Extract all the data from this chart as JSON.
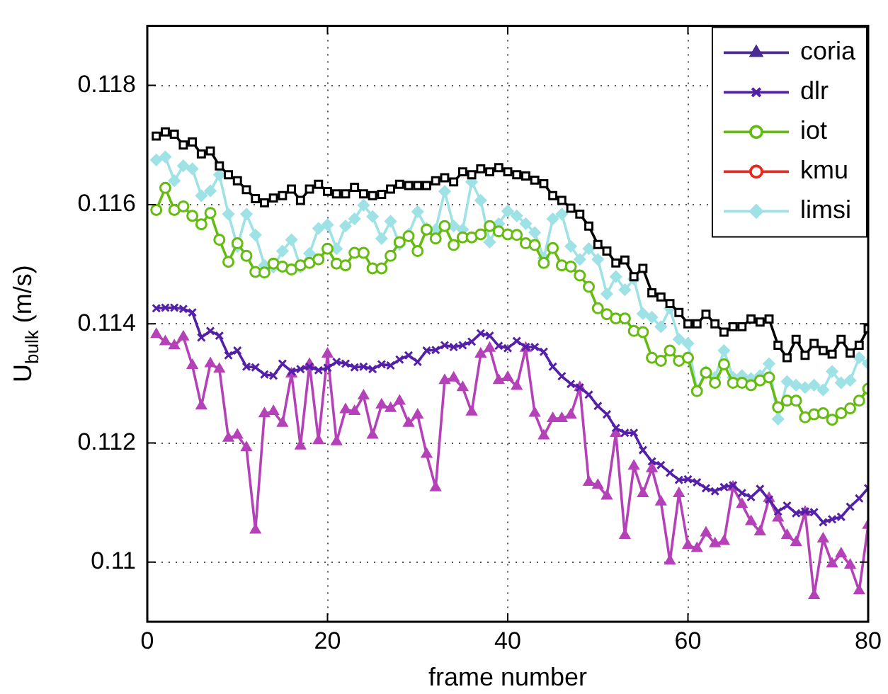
{
  "chart_data": {
    "type": "line",
    "xlabel": "frame number",
    "ylabel": "U$_{bulk}$ (m/s)",
    "x": [
      1,
      2,
      3,
      4,
      5,
      6,
      7,
      8,
      9,
      10,
      11,
      12,
      13,
      14,
      15,
      16,
      17,
      18,
      19,
      20,
      21,
      22,
      23,
      24,
      25,
      26,
      27,
      28,
      29,
      30,
      31,
      32,
      33,
      34,
      35,
      36,
      37,
      38,
      39,
      40,
      41,
      42,
      43,
      44,
      45,
      46,
      47,
      48,
      49,
      50,
      51,
      52,
      53,
      54,
      55,
      56,
      57,
      58,
      59,
      60,
      61,
      62,
      63,
      64,
      65,
      66,
      67,
      68,
      69,
      70,
      71,
      72,
      73,
      74,
      75,
      76,
      77,
      78,
      79,
      80
    ],
    "xlim": [
      0,
      80
    ],
    "xticks": [
      0,
      20,
      40,
      60,
      80
    ],
    "ylim": [
      0.109,
      0.119
    ],
    "yticks": [
      0.11,
      0.112,
      0.114,
      0.116,
      0.118
    ],
    "grid": true,
    "legend": "top right",
    "line_style": "solid",
    "series": [
      {
        "name": "coria",
        "color": "#4b2a96",
        "marker": "triangle",
        "values": [
          null,
          null,
          null,
          null,
          null,
          null,
          null,
          null,
          null,
          null,
          null,
          null,
          null,
          null,
          null,
          null,
          null,
          null,
          null,
          null,
          null,
          null,
          null,
          null,
          null,
          null,
          null,
          null,
          null,
          null,
          null,
          null,
          null,
          null,
          null,
          null,
          null,
          null,
          null,
          null,
          null,
          null,
          null,
          null,
          null,
          null,
          null,
          null,
          null,
          null,
          null,
          null,
          null,
          null,
          null,
          null,
          null,
          null,
          null,
          null,
          null,
          null,
          null,
          null,
          null,
          null,
          null,
          null,
          null,
          null,
          null,
          null,
          null,
          null,
          null,
          null,
          null,
          null,
          null,
          null
        ]
      },
      {
        "name": "dlr",
        "color": "#5420a8",
        "marker": "cross",
        "values": [
          0.11426,
          0.11427,
          0.11427,
          0.11425,
          0.11419,
          0.11377,
          0.11388,
          0.1138,
          0.11347,
          0.11355,
          0.11328,
          0.11327,
          0.11315,
          0.11313,
          0.11333,
          0.1132,
          0.11324,
          0.11328,
          0.11322,
          0.11326,
          0.11336,
          0.11333,
          0.11327,
          0.11328,
          0.11324,
          0.11332,
          0.1133,
          0.1134,
          0.11347,
          0.11336,
          0.11355,
          0.11356,
          0.11364,
          0.11361,
          0.11364,
          0.1137,
          0.11384,
          0.1138,
          0.11363,
          0.11359,
          0.11371,
          0.11361,
          0.11361,
          0.11353,
          0.11328,
          0.11312,
          0.11299,
          0.11293,
          0.11281,
          0.11262,
          0.11248,
          0.11225,
          0.11217,
          0.11217,
          0.11188,
          0.11169,
          0.11163,
          0.1115,
          0.11138,
          0.11139,
          0.11134,
          0.11124,
          0.11119,
          0.11126,
          0.11129,
          0.11116,
          0.11109,
          0.11123,
          0.11105,
          0.11085,
          0.11095,
          0.11082,
          0.11085,
          0.11084,
          0.11067,
          0.11072,
          0.11076,
          0.11093,
          0.11107,
          0.11124
        ]
      },
      {
        "name": "iot",
        "color": "#66bb11",
        "marker": "circle",
        "values": [
          0.11591,
          0.11628,
          0.11591,
          0.11597,
          0.11581,
          0.11567,
          0.11586,
          0.11541,
          0.11504,
          0.11535,
          0.11514,
          0.11487,
          0.11486,
          0.11501,
          0.11496,
          0.11491,
          0.11498,
          0.11502,
          0.11508,
          0.11526,
          0.11501,
          0.11498,
          0.11519,
          0.11519,
          0.11493,
          0.11493,
          0.11514,
          0.11537,
          0.11547,
          0.11522,
          0.11558,
          0.11543,
          0.11564,
          0.11532,
          0.11545,
          0.11545,
          0.1155,
          0.11564,
          0.11555,
          0.1155,
          0.11549,
          0.11535,
          0.11532,
          0.11502,
          0.11527,
          0.11498,
          0.11496,
          0.11481,
          0.11462,
          0.11426,
          0.11416,
          0.11409,
          0.11409,
          0.11388,
          0.11386,
          0.11343,
          0.11338,
          0.11355,
          0.11338,
          0.11343,
          0.11287,
          0.11318,
          0.11301,
          0.11332,
          0.11301,
          0.11301,
          0.11297,
          0.11305,
          0.1131,
          0.1126,
          0.11271,
          0.11271,
          0.11243,
          0.11248,
          0.1125,
          0.11239,
          0.1125,
          0.11258,
          0.11271,
          0.11291
        ]
      },
      {
        "name": "kmu",
        "color": "#e8281e",
        "marker": "circle",
        "values": [
          null,
          null,
          null,
          null,
          null,
          null,
          null,
          null,
          null,
          null,
          null,
          null,
          null,
          null,
          null,
          null,
          null,
          null,
          null,
          null,
          null,
          null,
          null,
          null,
          null,
          null,
          null,
          null,
          null,
          null,
          null,
          null,
          null,
          null,
          null,
          null,
          null,
          null,
          null,
          null,
          null,
          null,
          null,
          null,
          null,
          null,
          null,
          null,
          null,
          null,
          null,
          null,
          null,
          null,
          null,
          null,
          null,
          null,
          null,
          null,
          null,
          null,
          null,
          null,
          null,
          null,
          null,
          null,
          null,
          null,
          null,
          null,
          null,
          null,
          null,
          null,
          null,
          null,
          null,
          null
        ]
      },
      {
        "color": "#000000",
        "marker": "square",
        "values": [
          0.11715,
          0.11722,
          0.11718,
          0.117,
          0.11705,
          0.11685,
          0.1169,
          0.11665,
          0.1165,
          0.1164,
          0.11625,
          0.1161,
          0.11603,
          0.11611,
          0.11615,
          0.11626,
          0.11607,
          0.11626,
          0.11634,
          0.11622,
          0.11618,
          0.11618,
          0.11629,
          0.11618,
          0.11615,
          0.11617,
          0.11626,
          0.11634,
          0.11632,
          0.11632,
          0.11632,
          0.1164,
          0.11645,
          0.11638,
          0.11655,
          0.1165,
          0.1166,
          0.11655,
          0.11662,
          0.11655,
          0.1165,
          0.11648,
          0.11641,
          0.11635,
          0.11615,
          0.11607,
          0.11594,
          0.11584,
          0.11564,
          0.11533,
          0.11522,
          0.11502,
          0.11507,
          0.11479,
          0.11493,
          0.11452,
          0.11445,
          0.11434,
          0.11419,
          0.114,
          0.114,
          0.11416,
          0.114,
          0.11386,
          0.11395,
          0.11395,
          0.11408,
          0.11403,
          0.11408,
          0.11364,
          0.11343,
          0.11374,
          0.11347,
          0.11367,
          0.11355,
          0.11349,
          0.11374,
          0.11351,
          0.11364,
          0.11392
        ]
      },
      {
        "name": "limsi",
        "color": "#9fe2e6",
        "marker": "diamond",
        "values": [
          0.11675,
          0.1168,
          0.1164,
          0.11665,
          0.1166,
          0.11615,
          0.11623,
          0.1165,
          0.11584,
          0.1153,
          0.11584,
          0.11549,
          0.11498,
          0.11495,
          0.11522,
          0.11541,
          0.11495,
          0.11518,
          0.1156,
          0.11566,
          0.11526,
          0.11564,
          0.11576,
          0.11599,
          0.1158,
          0.11543,
          0.11572,
          0.11533,
          0.1155,
          0.11588,
          0.1156,
          0.11558,
          0.11622,
          0.11564,
          0.11558,
          0.11638,
          0.11607,
          0.11537,
          0.11568,
          0.11589,
          0.11581,
          0.11568,
          0.11553,
          0.1151,
          0.11576,
          0.11584,
          0.1153,
          0.11508,
          0.11526,
          0.11508,
          0.1145,
          0.11479,
          0.11457,
          0.11475,
          0.11417,
          0.11411,
          0.11395,
          0.11426,
          0.11374,
          0.11367,
          0.11289,
          0.1132,
          0.1131,
          0.11355,
          0.1131,
          0.11313,
          0.11308,
          0.11313,
          0.11333,
          0.1124,
          0.11303,
          0.11297,
          0.11293,
          0.11297,
          0.11289,
          0.1132,
          0.11301,
          0.11305,
          0.11343,
          0.11333
        ]
      },
      {
        "color": "#b541b8",
        "marker": "triangle",
        "values": [
          0.11382,
          0.1137,
          0.11363,
          0.11378,
          0.1133,
          0.11262,
          0.11333,
          0.11324,
          0.11208,
          0.11213,
          0.11192,
          0.11054,
          0.11249,
          0.11253,
          0.11233,
          0.11316,
          0.11195,
          0.11332,
          0.11204,
          0.11349,
          0.11202,
          0.11256,
          0.11253,
          0.11279,
          0.11213,
          0.11264,
          0.11258,
          0.1127,
          0.11233,
          0.11247,
          0.11181,
          0.11125,
          0.11305,
          0.11309,
          0.11293,
          0.11252,
          0.11349,
          0.11359,
          0.11305,
          0.1131,
          0.11295,
          0.11359,
          0.1125,
          0.11212,
          0.11241,
          0.11241,
          0.11247,
          0.11293,
          0.11134,
          0.11129,
          0.11111,
          0.11216,
          0.11045,
          0.11161,
          0.11115,
          0.11157,
          0.11101,
          0.11002,
          0.11115,
          0.11028,
          0.11023,
          0.11049,
          0.11031,
          0.11035,
          0.11126,
          0.11097,
          0.11068,
          0.11051,
          0.11107,
          0.11074,
          0.11045,
          0.11033,
          0.11084,
          0.10944,
          0.11039,
          0.10997,
          0.11014,
          0.10995,
          0.10952,
          0.11062
        ]
      }
    ]
  }
}
